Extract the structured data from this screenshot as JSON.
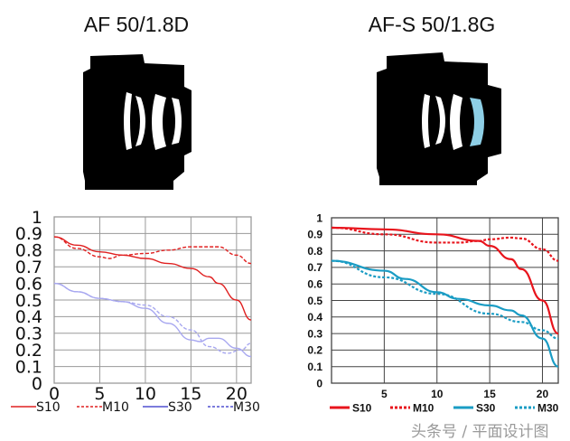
{
  "titles": [
    "AF 50/1.8D",
    "AF-S 50/1.8G"
  ],
  "watermark": "头条号 / 平面设计图",
  "chart_data": [
    {
      "type": "line",
      "title": "AF 50/1.8D",
      "xlim": [
        0,
        21.6
      ],
      "ylim": [
        0,
        1
      ],
      "xticks": [
        "0",
        "5",
        "10",
        "15",
        "20"
      ],
      "yticks": [
        "0",
        "0.1",
        "0.2",
        "0.3",
        "0.4",
        "0.5",
        "0.6",
        "0.7",
        "0.8",
        "0.9",
        "1"
      ],
      "grid": true,
      "legend": "bottom",
      "series": [
        {
          "name": "S10",
          "color": "#e02020",
          "legend_color": "#e02020",
          "dash": false,
          "x": [
            0,
            2.5,
            5,
            7.5,
            10,
            12.5,
            15,
            17,
            18,
            20,
            21.6
          ],
          "y": [
            0.88,
            0.83,
            0.79,
            0.77,
            0.75,
            0.72,
            0.69,
            0.64,
            0.6,
            0.5,
            0.38
          ]
        },
        {
          "name": "M10",
          "color": "#e02020",
          "legend_color": "#e02020",
          "dash": true,
          "x": [
            0,
            2.5,
            5,
            6,
            7.5,
            10,
            12.5,
            15,
            18,
            20,
            21.6
          ],
          "y": [
            0.88,
            0.81,
            0.76,
            0.75,
            0.77,
            0.78,
            0.8,
            0.82,
            0.82,
            0.77,
            0.72
          ]
        },
        {
          "name": "S30",
          "color": "#a8a8f0",
          "legend_color": "#5050d0",
          "dash": false,
          "x": [
            0,
            2.5,
            5,
            7.5,
            10,
            12.5,
            15,
            16,
            17,
            18,
            20,
            21.6
          ],
          "y": [
            0.6,
            0.55,
            0.51,
            0.49,
            0.45,
            0.36,
            0.26,
            0.25,
            0.27,
            0.27,
            0.21,
            0.16
          ]
        },
        {
          "name": "M30",
          "color": "#a8a8f0",
          "legend_color": "#5050d0",
          "dash": true,
          "x": [
            0,
            2.5,
            5,
            7.5,
            10,
            12.5,
            15,
            17,
            19,
            20.5,
            21.6
          ],
          "y": [
            0.6,
            0.55,
            0.51,
            0.49,
            0.47,
            0.4,
            0.32,
            0.22,
            0.18,
            0.2,
            0.24
          ]
        }
      ]
    },
    {
      "type": "line",
      "title": "AF-S 50/1.8G",
      "xlim": [
        0,
        21.5
      ],
      "ylim": [
        0,
        1
      ],
      "xticks": [
        "5",
        "10",
        "15",
        "20"
      ],
      "yticks": [
        "0",
        "0.1",
        "0.2",
        "0.3",
        "0.4",
        "0.5",
        "0.6",
        "0.7",
        "0.8",
        "0.9",
        "1"
      ],
      "grid": true,
      "legend": "bottom",
      "series": [
        {
          "name": "S10",
          "color": "#e8141c",
          "legend_color": "#e8141c",
          "dash": false,
          "x": [
            0,
            5,
            10,
            14,
            15,
            17,
            18,
            20,
            21.5
          ],
          "y": [
            0.94,
            0.93,
            0.9,
            0.86,
            0.83,
            0.75,
            0.69,
            0.5,
            0.3
          ]
        },
        {
          "name": "M10",
          "color": "#e8141c",
          "legend_color": "#e8141c",
          "dash": true,
          "x": [
            0,
            5,
            10,
            12,
            14,
            15,
            17,
            18,
            20,
            21.5
          ],
          "y": [
            0.94,
            0.9,
            0.85,
            0.85,
            0.86,
            0.87,
            0.88,
            0.875,
            0.81,
            0.74
          ]
        },
        {
          "name": "S30",
          "color": "#1a9cc4",
          "legend_color": "#1a9cc4",
          "dash": false,
          "x": [
            0,
            5,
            7,
            10,
            12,
            15,
            17,
            18,
            20,
            21.5
          ],
          "y": [
            0.74,
            0.68,
            0.63,
            0.55,
            0.51,
            0.47,
            0.44,
            0.41,
            0.27,
            0.1
          ]
        },
        {
          "name": "M30",
          "color": "#1a9cc4",
          "legend_color": "#1a9cc4",
          "dash": true,
          "x": [
            0,
            5,
            10,
            15,
            18,
            20,
            21.5
          ],
          "y": [
            0.74,
            0.64,
            0.54,
            0.42,
            0.37,
            0.32,
            0.27
          ]
        }
      ]
    }
  ]
}
